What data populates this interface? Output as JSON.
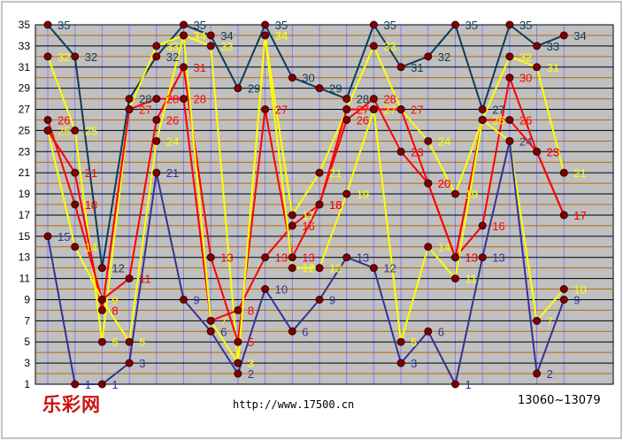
{
  "footer": {
    "logo": "乐彩网",
    "url": "http://www.17500.cn",
    "range": "13060~13079"
  },
  "chart_data": {
    "type": "line",
    "title": "",
    "xlabel": "",
    "ylabel": "",
    "x": [
      1,
      2,
      3,
      4,
      5,
      6,
      7,
      8,
      9,
      10,
      11,
      12,
      13,
      14,
      15,
      16,
      17,
      18,
      19,
      20
    ],
    "ylim": [
      1,
      35
    ],
    "yticks": [
      1,
      3,
      5,
      7,
      9,
      11,
      13,
      15,
      17,
      19,
      21,
      23,
      25,
      27,
      29,
      31,
      33,
      35
    ],
    "grid": true,
    "series": [
      {
        "color": "#0b3c5d",
        "values": [
          35,
          32,
          12,
          28,
          32,
          35,
          34,
          29,
          35,
          30,
          29,
          28,
          35,
          31,
          32,
          35,
          27,
          35,
          33,
          34
        ]
      },
      {
        "color": "#ffff00",
        "values": [
          32,
          25,
          5,
          27,
          33,
          34,
          33,
          3,
          34,
          17,
          21,
          27,
          33,
          27,
          24,
          19,
          26,
          32,
          31,
          21
        ]
      },
      {
        "color": "#ff0000",
        "values": [
          26,
          18,
          9,
          11,
          26,
          31,
          13,
          5,
          27,
          13,
          18,
          26,
          28,
          23,
          20,
          13,
          16,
          30,
          23,
          17
        ]
      },
      {
        "color": "#ff0000",
        "values": [
          25,
          21,
          8,
          27,
          28,
          28,
          7,
          8,
          13,
          16,
          18,
          27,
          27,
          27,
          20,
          13,
          26,
          26,
          23,
          17
        ]
      },
      {
        "color": "#ffff00",
        "values": [
          25,
          14,
          9,
          5,
          24,
          34,
          7,
          3,
          34,
          12,
          12,
          19,
          27,
          5,
          14,
          11,
          26,
          24,
          7,
          10
        ]
      },
      {
        "color": "#333399",
        "values": [
          15,
          1,
          1,
          3,
          21,
          9,
          6,
          2,
          10,
          6,
          9,
          13,
          12,
          3,
          6,
          1,
          13,
          24,
          2,
          9
        ]
      }
    ]
  }
}
